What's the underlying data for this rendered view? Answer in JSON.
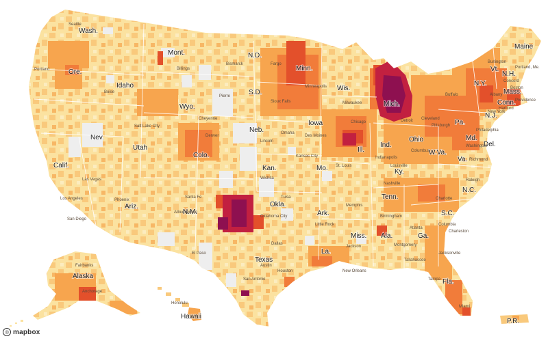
{
  "map": {
    "attribution": "mapbox",
    "attribution_icon": "mapbox-logo-icon",
    "colors": {
      "none": "#eeeeee",
      "lightest": "#fbe2a0",
      "light": "#f9c97c",
      "medium": "#f7a54e",
      "strong": "#f17c3a",
      "heavy": "#e3502b",
      "severe": "#c22040",
      "extreme": "#8e1050",
      "borders": "#ffffff"
    },
    "state_labels": [
      "Wash.",
      "Ore.",
      "Calif.",
      "Nev.",
      "Idaho",
      "Mont.",
      "Wyo.",
      "Utah",
      "Colo.",
      "Ariz.",
      "N.M.",
      "N.D.",
      "S.D.",
      "Neb.",
      "Kan.",
      "Okla.",
      "Texas",
      "Minn.",
      "Iowa",
      "Mo.",
      "Ark.",
      "La.",
      "Wis.",
      "Ill.",
      "Mich.",
      "Ind.",
      "Ohio",
      "Ky.",
      "Tenn.",
      "Miss.",
      "Ala.",
      "Ga.",
      "Fla.",
      "S.C.",
      "N.C.",
      "Va.",
      "W.Va.",
      "Pa.",
      "N.Y.",
      "Vt.",
      "N.H.",
      "Maine",
      "Mass.",
      "Conn.",
      "N.J.",
      "Md.",
      "Del.",
      "Alaska",
      "Hawaii",
      "P.R."
    ],
    "city_labels": [
      "Seattle",
      "Portland",
      "Boise",
      "Billings",
      "Salt Lake City",
      "Las Vegas",
      "Los Angeles",
      "San Diego",
      "Phoenix",
      "Denver",
      "Albuquerque",
      "Santa Fe",
      "Oklahoma City",
      "Dallas",
      "Houston",
      "San Antonio",
      "Austin",
      "El Paso",
      "Kansas City",
      "Omaha",
      "Minneapolis",
      "Chicago",
      "Milwaukee",
      "Detroit",
      "St. Louis",
      "Nashville",
      "Memphis",
      "Atlanta",
      "Birmingham",
      "New Orleans",
      "Jacksonville",
      "Tampa",
      "Miami",
      "Charlotte",
      "Raleigh",
      "Richmond",
      "Washington",
      "Philadelphia",
      "New York",
      "Boston",
      "Pittsburgh",
      "Columbus",
      "Indianapolis",
      "Louisville",
      "Cleveland",
      "Anchorage",
      "Fairbanks",
      "Honolulu",
      "Cheyenne",
      "Bismarck",
      "Pierre",
      "Fargo",
      "Sioux Falls",
      "Des Moines",
      "Lincoln",
      "Wichita",
      "Tulsa",
      "Little Rock",
      "Jackson",
      "Montgomery",
      "Tallahassee",
      "Columbia",
      "Charleston",
      "Buffalo",
      "Albany",
      "Providence",
      "Hartford",
      "Portland, Me.",
      "Burlington",
      "Concord"
    ]
  }
}
